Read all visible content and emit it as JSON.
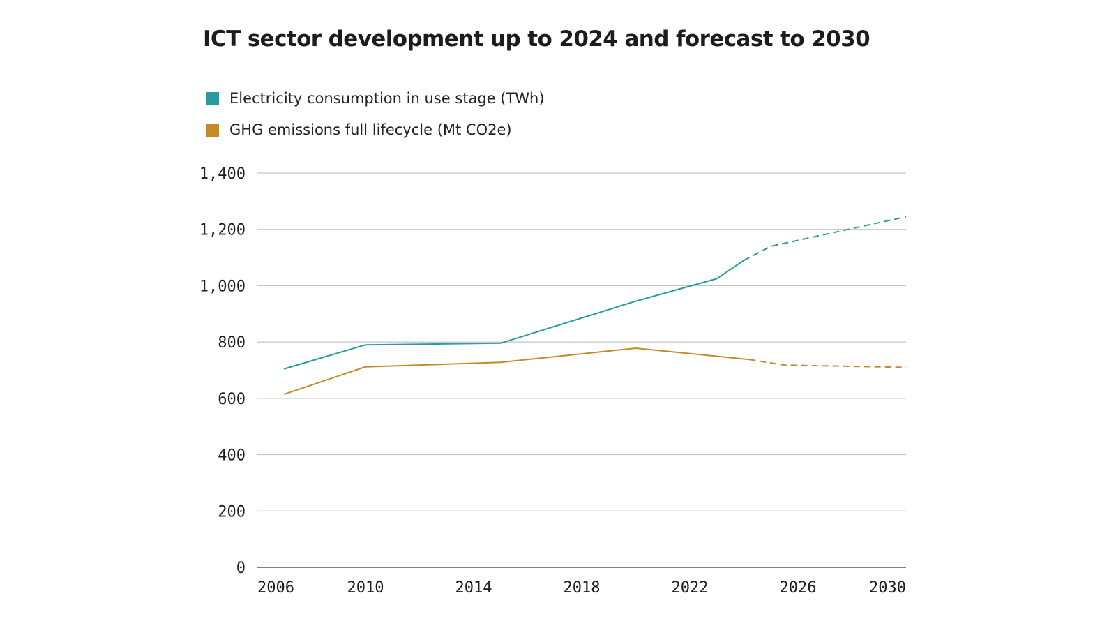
{
  "chart_data": {
    "type": "line",
    "title": "ICT sector development up to 2024 and forecast to 2030",
    "xlabel": "",
    "ylabel": "",
    "xlim": [
      2006,
      2030
    ],
    "ylim": [
      0,
      1400
    ],
    "x_ticks": [
      "2006",
      "2010",
      "2014",
      "2018",
      "2022",
      "2026",
      "2030"
    ],
    "y_ticks": [
      "0",
      "200",
      "400",
      "600",
      "800",
      "1,000",
      "1,200",
      "1,400"
    ],
    "grid": "horizontal",
    "legend_position": "top-left",
    "forecast_start_year": 2024,
    "series": [
      {
        "name": "Electricity consumption in use stage (TWh)",
        "color": "#2a9a9e",
        "points": [
          {
            "x": 2007,
            "y": 705,
            "forecast": false
          },
          {
            "x": 2010,
            "y": 790,
            "forecast": false
          },
          {
            "x": 2015,
            "y": 796,
            "forecast": false
          },
          {
            "x": 2020,
            "y": 945,
            "forecast": false
          },
          {
            "x": 2023,
            "y": 1025,
            "forecast": false
          },
          {
            "x": 2024,
            "y": 1090,
            "forecast": false
          },
          {
            "x": 2025,
            "y": 1140,
            "forecast": true
          },
          {
            "x": 2030,
            "y": 1245,
            "forecast": true
          }
        ]
      },
      {
        "name": "GHG emissions full lifecycle (Mt CO2e)",
        "color": "#c48a2a",
        "points": [
          {
            "x": 2007,
            "y": 615,
            "forecast": false
          },
          {
            "x": 2010,
            "y": 712,
            "forecast": false
          },
          {
            "x": 2015,
            "y": 728,
            "forecast": false
          },
          {
            "x": 2020,
            "y": 778,
            "forecast": false
          },
          {
            "x": 2024.2,
            "y": 738,
            "forecast": false
          },
          {
            "x": 2025.5,
            "y": 718,
            "forecast": true
          },
          {
            "x": 2030,
            "y": 710,
            "forecast": true
          }
        ]
      }
    ]
  }
}
